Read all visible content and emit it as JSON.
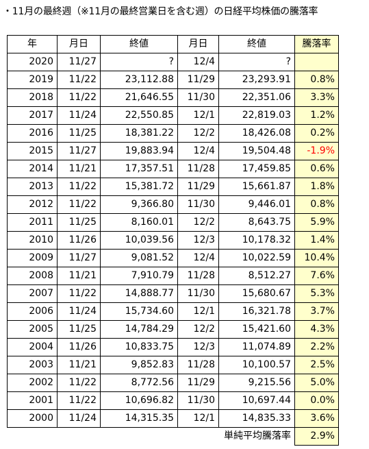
{
  "title": "・11月の最終週（※11月の最終営業日を含む週）の日経平均株価の騰落率",
  "columns": [
    "年",
    "月日",
    "終値",
    "月日",
    "終値",
    "騰落率"
  ],
  "rows": [
    {
      "year": "2020",
      "date1": "11/27",
      "close1": "?",
      "date2": "12/4",
      "close2": "?",
      "rate": ""
    },
    {
      "year": "2019",
      "date1": "11/22",
      "close1": "23,112.88",
      "date2": "11/29",
      "close2": "23,293.91",
      "rate": "0.8%"
    },
    {
      "year": "2018",
      "date1": "11/22",
      "close1": "21,646.55",
      "date2": "11/30",
      "close2": "22,351.06",
      "rate": "3.3%"
    },
    {
      "year": "2017",
      "date1": "11/24",
      "close1": "22,550.85",
      "date2": "12/1",
      "close2": "22,819.03",
      "rate": "1.2%"
    },
    {
      "year": "2016",
      "date1": "11/25",
      "close1": "18,381.22",
      "date2": "12/2",
      "close2": "18,426.08",
      "rate": "0.2%"
    },
    {
      "year": "2015",
      "date1": "11/27",
      "close1": "19,883.94",
      "date2": "12/4",
      "close2": "19,504.48",
      "rate": "-1.9%",
      "negative": true
    },
    {
      "year": "2014",
      "date1": "11/21",
      "close1": "17,357.51",
      "date2": "11/28",
      "close2": "17,459.85",
      "rate": "0.6%"
    },
    {
      "year": "2013",
      "date1": "11/22",
      "close1": "15,381.72",
      "date2": "11/29",
      "close2": "15,661.87",
      "rate": "1.8%"
    },
    {
      "year": "2012",
      "date1": "11/22",
      "close1": "9,366.80",
      "date2": "11/30",
      "close2": "9,446.01",
      "rate": "0.8%"
    },
    {
      "year": "2011",
      "date1": "11/25",
      "close1": "8,160.01",
      "date2": "12/2",
      "close2": "8,643.75",
      "rate": "5.9%"
    },
    {
      "year": "2010",
      "date1": "11/26",
      "close1": "10,039.56",
      "date2": "12/3",
      "close2": "10,178.32",
      "rate": "1.4%"
    },
    {
      "year": "2009",
      "date1": "11/27",
      "close1": "9,081.52",
      "date2": "12/4",
      "close2": "10,022.59",
      "rate": "10.4%"
    },
    {
      "year": "2008",
      "date1": "11/21",
      "close1": "7,910.79",
      "date2": "11/28",
      "close2": "8,512.27",
      "rate": "7.6%"
    },
    {
      "year": "2007",
      "date1": "11/22",
      "close1": "14,888.77",
      "date2": "11/30",
      "close2": "15,680.67",
      "rate": "5.3%"
    },
    {
      "year": "2006",
      "date1": "11/24",
      "close1": "15,734.60",
      "date2": "12/1",
      "close2": "16,321.78",
      "rate": "3.7%"
    },
    {
      "year": "2005",
      "date1": "11/25",
      "close1": "14,784.29",
      "date2": "12/2",
      "close2": "15,421.60",
      "rate": "4.3%"
    },
    {
      "year": "2004",
      "date1": "11/26",
      "close1": "10,833.75",
      "date2": "12/3",
      "close2": "11,074.89",
      "rate": "2.2%"
    },
    {
      "year": "2003",
      "date1": "11/21",
      "close1": "9,852.83",
      "date2": "11/28",
      "close2": "10,100.57",
      "rate": "2.5%"
    },
    {
      "year": "2002",
      "date1": "11/22",
      "close1": "8,772.56",
      "date2": "11/29",
      "close2": "9,215.56",
      "rate": "5.0%"
    },
    {
      "year": "2001",
      "date1": "11/22",
      "close1": "10,696.82",
      "date2": "11/30",
      "close2": "10,697.44",
      "rate": "0.0%"
    },
    {
      "year": "2000",
      "date1": "11/24",
      "close1": "14,315.35",
      "date2": "12/1",
      "close2": "14,835.33",
      "rate": "3.6%"
    }
  ],
  "average": {
    "label": "単純平均騰落率",
    "value": "2.9%"
  },
  "colors": {
    "rate_background": "#ffffcc",
    "negative_text": "#ff0000",
    "border": "#000000"
  }
}
